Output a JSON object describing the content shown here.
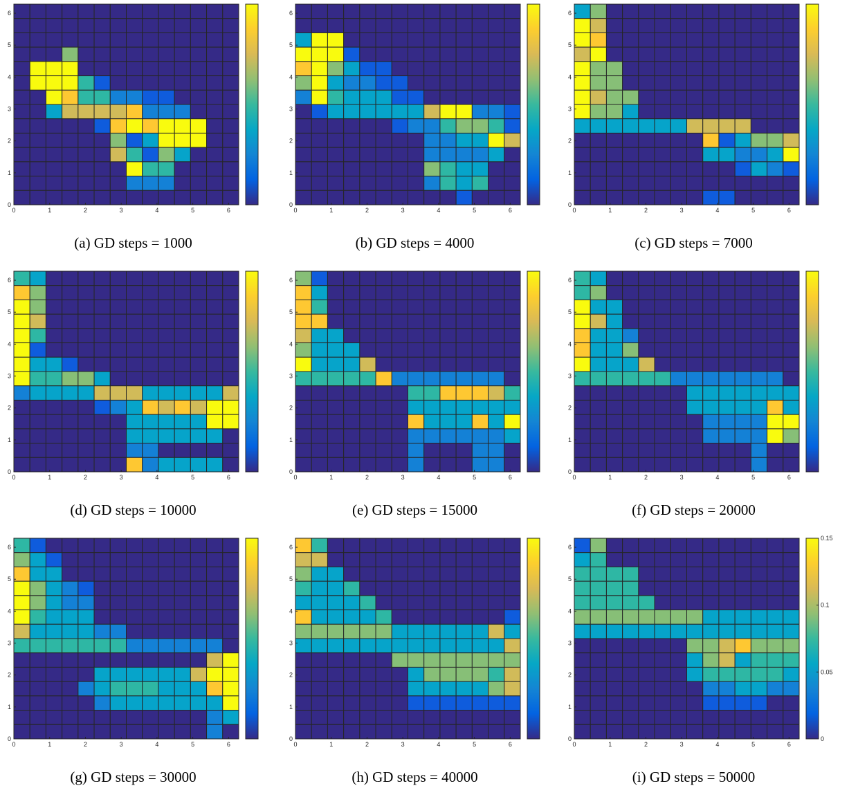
{
  "chart_data": {
    "type": "heatmap",
    "grid": {
      "rows": 14,
      "cols": 14
    },
    "x_range": [
      0,
      6.2832
    ],
    "y_range": [
      0,
      6.2832
    ],
    "x_ticks": [
      "0",
      "1",
      "2",
      "3",
      "4",
      "5",
      "6"
    ],
    "y_ticks": [
      "0",
      "1",
      "2",
      "3",
      "4",
      "5",
      "6"
    ],
    "colorbar": {
      "min": 0,
      "max": 0.15,
      "tick_values": [
        0,
        0.05,
        0.1,
        0.15
      ],
      "tick_labels": [
        "0",
        "0.05",
        "0.1",
        "0.15"
      ]
    },
    "colormap": [
      "#352a87",
      "#0f5cdd",
      "#1481d6",
      "#06a4ca",
      "#2eb7a4",
      "#87bf77",
      "#d1bb59",
      "#fec832",
      "#f9fb0e"
    ],
    "grid_color": "#262626",
    "encoding_note": "rows listed top (y≈6.2) to bottom (y≈0); values 0-8 index into colormap",
    "panels": [
      {
        "caption": "(a)  GD steps = 1000",
        "show_colorbar_labels": false,
        "rows": [
          "00000000000000",
          "00000000000000",
          "00000000000000",
          "00050000000000",
          "08880000000000",
          "08884100000000",
          "00874422110000",
          "00366667222000",
          "00000178788800",
          "00000051388800",
          "00000064153000",
          "00000008440000",
          "00000002220000",
          "00000000000000"
        ]
      },
      {
        "caption": "(b)  GD steps = 4000",
        "show_colorbar_labels": false,
        "rows": [
          "00000000000000",
          "00000000000000",
          "38800000000000",
          "88810000000000",
          "78531100000000",
          "58322110000000",
          "28433311000000",
          "01333333688221",
          "00000012245541",
          "00000000223386",
          "00000000222230",
          "00000000543300",
          "00000000243400",
          "00000000001000"
        ]
      },
      {
        "caption": "(c)  GD steps = 7000",
        "show_colorbar_labels": false,
        "rows": [
          "35000000000000",
          "86000000000000",
          "87000000000000",
          "68000000000000",
          "85500000000000",
          "85500000000000",
          "86550000000000",
          "85530000000000",
          "33333336666000",
          "00000000713556",
          "00000000332238",
          "00000000001321",
          "00000000000000",
          "00000000110000"
        ]
      },
      {
        "caption": "(d)  GD steps = 10000",
        "show_colorbar_labels": false,
        "rows": [
          "43000000000000",
          "75000000000000",
          "85000000000000",
          "86000000000000",
          "84000000000000",
          "81000000000000",
          "83310000000000",
          "84455300000000",
          "23333666333336",
          "00000123767688",
          "00000003333388",
          "00000003333330",
          "00000002200000",
          "00000007233330"
        ]
      },
      {
        "caption": "(e)  GD steps = 15000",
        "show_colorbar_labels": false,
        "rows": [
          "51000000000000",
          "73000000000000",
          "74000000000000",
          "77000000000000",
          "63300000000000",
          "53330000000000",
          "83336000000000",
          "44444722222220",
          "00000004477764",
          "00000003333333",
          "00000007333738",
          "00000002222223",
          "00000002000220",
          "00000002000220"
        ]
      },
      {
        "caption": "(f)  GD steps = 20000",
        "show_colorbar_labels": false,
        "rows": [
          "43000000000000",
          "45000000000000",
          "83300000000000",
          "86300000000000",
          "73320000000000",
          "73350000000000",
          "83336000000000",
          "44444422222220",
          "00000003333333",
          "00000003333373",
          "00000000222288",
          "00000000222285",
          "00000000000200",
          "00000000000200"
        ]
      },
      {
        "caption": "(g)  GD steps = 30000",
        "show_colorbar_labels": false,
        "rows": [
          "41000000000000",
          "53100000000000",
          "73300000000000",
          "85321000000000",
          "85322000000000",
          "84333000000000",
          "63333220000000",
          "44444442222220",
          "00000000000068",
          "00000333333688",
          "00002344433378",
          "00000233333338",
          "00000000000023",
          "00000000000020"
        ]
      },
      {
        "caption": "(h)  GD steps = 40000",
        "show_colorbar_labels": false,
        "rows": [
          "74000000000000",
          "66000000000000",
          "53300000000000",
          "43340000000000",
          "33334000000000",
          "73333400000001",
          "55555533333363",
          "33333333333336",
          "00000055555555",
          "00000003555546",
          "00000003333356",
          "00000001111111",
          "00000000000000",
          "00000000000000"
        ]
      },
      {
        "caption": "(i)  GD steps = 50000",
        "show_colorbar_labels": true,
        "rows": [
          "15000000000000",
          "34000000000000",
          "44440000000000",
          "44440000000000",
          "44444000000000",
          "55555555333333",
          "33333333333333",
          "00000005567555",
          "00000003563444",
          "00000003444443",
          "00000000223322",
          "00000000111100",
          "00000000000000",
          "00000000000000"
        ]
      }
    ]
  }
}
